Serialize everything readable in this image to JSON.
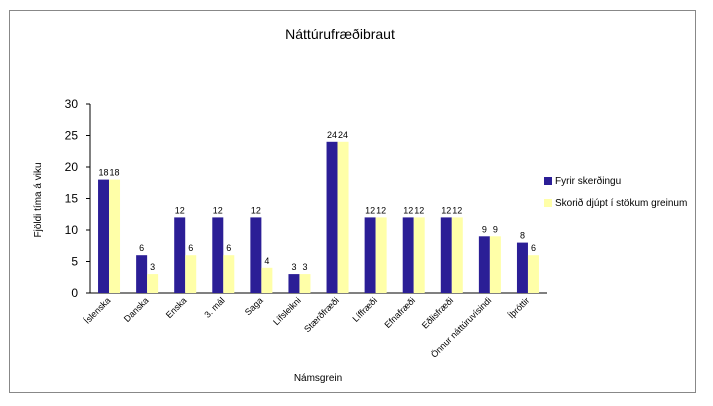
{
  "chart_data": {
    "type": "bar",
    "title": "Náttúrufræðibraut",
    "xlabel": "Námsgrein",
    "ylabel": "Fjöldi tíma á viku",
    "ylim": [
      0,
      30
    ],
    "yticks": [
      0,
      5,
      10,
      15,
      20,
      25,
      30
    ],
    "grid": false,
    "legend_position": "right",
    "categories": [
      "Íslenska",
      "Danska",
      "Enska",
      "3. mál",
      "Saga",
      "Lífsleikni",
      "Stærðfræði",
      "Líffræði",
      "Efnafræði",
      "Eðlisfræði",
      "Önnur náttúruvísindi",
      "Íþróttir"
    ],
    "series": [
      {
        "name": "Fyrir skerðingu",
        "color": "#2B1E96",
        "values": [
          18,
          6,
          12,
          12,
          12,
          3,
          24,
          12,
          12,
          12,
          9,
          8
        ]
      },
      {
        "name": "Skorið djúpt í stökum greinum",
        "color": "#FFFFA8",
        "values": [
          18,
          3,
          6,
          6,
          4,
          3,
          24,
          12,
          12,
          12,
          9,
          6
        ]
      }
    ]
  }
}
